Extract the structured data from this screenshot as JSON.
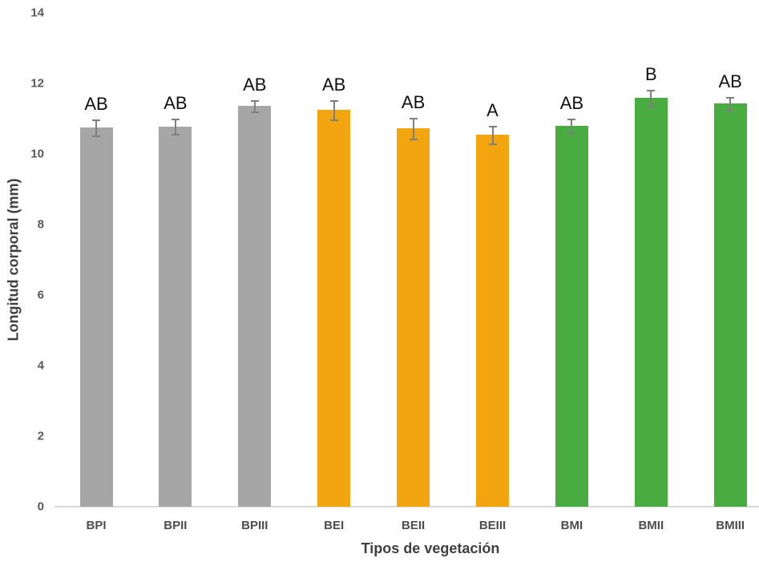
{
  "chart_data": {
    "type": "bar",
    "title": "",
    "xlabel": "Tipos de vegetación",
    "ylabel": "Longitud corporal (mm)",
    "categories": [
      "BPI",
      "BPII",
      "BPIII",
      "BEI",
      "BEII",
      "BEIII",
      "BMI",
      "BMII",
      "BMIII"
    ],
    "values": [
      10.75,
      10.78,
      11.37,
      11.25,
      10.73,
      10.55,
      10.8,
      11.59,
      11.43
    ],
    "error_bars": [
      0.22,
      0.22,
      0.16,
      0.28,
      0.3,
      0.25,
      0.2,
      0.23,
      0.18
    ],
    "significance_letters": [
      "AB",
      "AB",
      "AB",
      "AB",
      "AB",
      "A",
      "AB",
      "B",
      "AB"
    ],
    "bar_colors": [
      "#a6a6a6",
      "#a6a6a6",
      "#a6a6a6",
      "#f2a50e",
      "#f2a50e",
      "#f2a50e",
      "#49ac40",
      "#49ac40",
      "#49ac40"
    ],
    "ylim": [
      0,
      14
    ],
    "yticks": [
      0,
      2,
      4,
      6,
      8,
      10,
      12,
      14
    ],
    "grid": "off",
    "legend": "none",
    "colors": {
      "gray_series": "#a6a6a6",
      "orange_series": "#f2a50e",
      "green_series": "#49ac40",
      "axis_line": "#d9d9d9",
      "tick_label": "#595959",
      "error_bar": "#7f7f7f",
      "letter_label": "#111111"
    }
  }
}
